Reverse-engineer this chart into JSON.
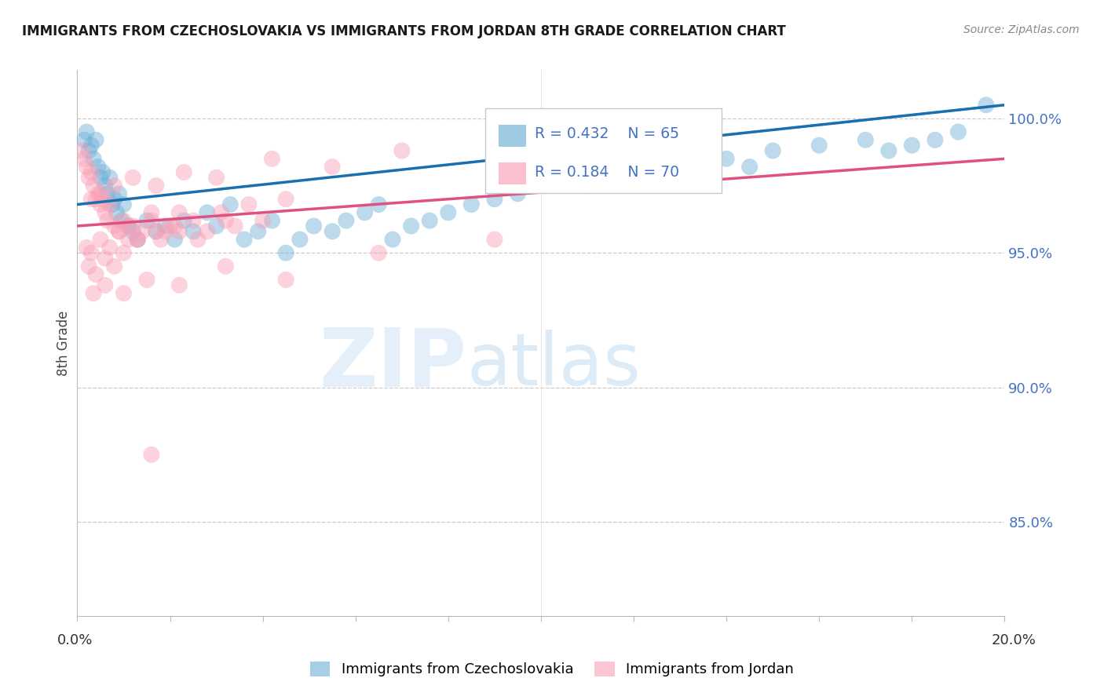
{
  "title": "IMMIGRANTS FROM CZECHOSLOVAKIA VS IMMIGRANTS FROM JORDAN 8TH GRADE CORRELATION CHART",
  "source": "Source: ZipAtlas.com",
  "ylabel": "8th Grade",
  "legend_label_blue": "Immigrants from Czechoslovakia",
  "legend_label_pink": "Immigrants from Jordan",
  "R_blue": 0.432,
  "N_blue": 65,
  "R_pink": 0.184,
  "N_pink": 70,
  "blue_color": "#6baed6",
  "pink_color": "#fa9fb5",
  "trend_blue": "#1a6faf",
  "trend_pink": "#e05080",
  "xmin": 0.0,
  "xmax": 20.0,
  "ymin": 81.5,
  "ymax": 101.8,
  "yticks": [
    85.0,
    90.0,
    95.0,
    100.0
  ],
  "blue_trend_y0": 96.8,
  "blue_trend_y1": 100.5,
  "pink_trend_y0": 96.0,
  "pink_trend_y1": 98.5,
  "scatter_blue_x": [
    0.15,
    0.2,
    0.25,
    0.3,
    0.35,
    0.4,
    0.45,
    0.5,
    0.55,
    0.6,
    0.65,
    0.7,
    0.75,
    0.8,
    0.85,
    0.9,
    0.95,
    1.0,
    1.1,
    1.2,
    1.3,
    1.5,
    1.7,
    1.9,
    2.1,
    2.3,
    2.5,
    2.8,
    3.0,
    3.3,
    3.6,
    3.9,
    4.2,
    4.5,
    4.8,
    5.1,
    5.5,
    5.8,
    6.2,
    6.5,
    6.8,
    7.2,
    7.6,
    8.0,
    8.5,
    9.0,
    9.5,
    10.0,
    10.5,
    11.0,
    11.5,
    12.0,
    12.5,
    13.0,
    13.5,
    14.0,
    14.5,
    15.0,
    16.0,
    17.0,
    17.5,
    18.0,
    18.5,
    19.0,
    19.6
  ],
  "scatter_blue_y": [
    99.2,
    99.5,
    98.8,
    99.0,
    98.5,
    99.2,
    98.2,
    97.8,
    98.0,
    97.5,
    97.2,
    97.8,
    96.8,
    97.0,
    96.5,
    97.2,
    96.2,
    96.8,
    96.0,
    95.8,
    95.5,
    96.2,
    95.8,
    96.0,
    95.5,
    96.2,
    95.8,
    96.5,
    96.0,
    96.8,
    95.5,
    95.8,
    96.2,
    95.0,
    95.5,
    96.0,
    95.8,
    96.2,
    96.5,
    96.8,
    95.5,
    96.0,
    96.2,
    96.5,
    96.8,
    97.0,
    97.2,
    97.5,
    97.8,
    97.5,
    97.8,
    98.0,
    97.8,
    98.2,
    98.0,
    98.5,
    98.2,
    98.8,
    99.0,
    99.2,
    98.8,
    99.0,
    99.2,
    99.5,
    100.5
  ],
  "scatter_pink_x": [
    0.1,
    0.15,
    0.2,
    0.25,
    0.3,
    0.35,
    0.4,
    0.45,
    0.5,
    0.55,
    0.6,
    0.65,
    0.7,
    0.8,
    0.9,
    1.0,
    1.1,
    1.2,
    1.4,
    1.6,
    1.8,
    2.0,
    2.2,
    2.5,
    2.8,
    3.1,
    3.4,
    3.7,
    4.0,
    4.5,
    0.2,
    0.3,
    0.5,
    0.7,
    0.9,
    1.1,
    1.3,
    1.6,
    1.9,
    2.2,
    0.25,
    0.4,
    0.6,
    0.8,
    1.0,
    1.3,
    1.7,
    2.1,
    2.6,
    3.2,
    0.3,
    0.5,
    0.8,
    1.2,
    1.7,
    2.3,
    3.0,
    4.2,
    5.5,
    7.0,
    0.35,
    0.6,
    1.0,
    1.5,
    2.2,
    3.2,
    4.5,
    6.5,
    9.0,
    1.6
  ],
  "scatter_pink_y": [
    98.8,
    98.5,
    98.2,
    97.8,
    98.0,
    97.5,
    97.0,
    97.2,
    96.8,
    97.0,
    96.5,
    96.2,
    96.8,
    96.0,
    95.8,
    96.2,
    95.5,
    96.0,
    95.8,
    96.5,
    95.5,
    96.0,
    95.8,
    96.2,
    95.8,
    96.5,
    96.0,
    96.8,
    96.2,
    97.0,
    95.2,
    95.0,
    95.5,
    95.2,
    95.8,
    96.0,
    95.5,
    96.2,
    95.8,
    96.5,
    94.5,
    94.2,
    94.8,
    94.5,
    95.0,
    95.5,
    95.8,
    96.0,
    95.5,
    96.2,
    97.0,
    97.2,
    97.5,
    97.8,
    97.5,
    98.0,
    97.8,
    98.5,
    98.2,
    98.8,
    93.5,
    93.8,
    93.5,
    94.0,
    93.8,
    94.5,
    94.0,
    95.0,
    95.5,
    87.5
  ]
}
